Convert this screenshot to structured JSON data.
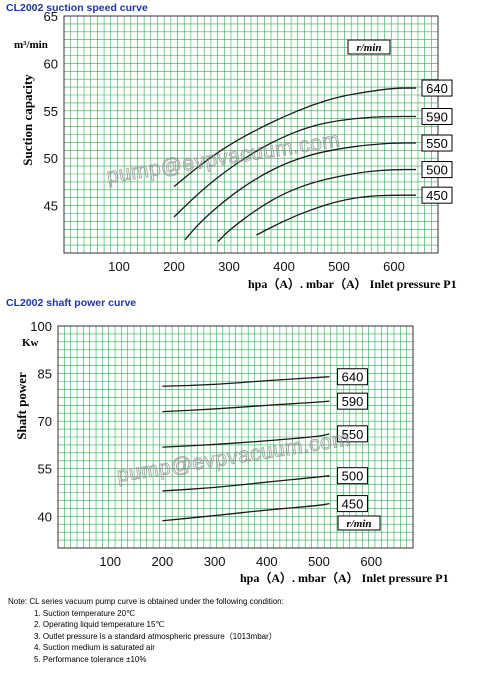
{
  "chart_data": [
    {
      "type": "line",
      "title": "CL2002 suction speed curve",
      "ylabel": "Suction capacity",
      "yunit": "m³/min",
      "xlabel": "hpa（A）. mbar（A） Inlet pressure P1",
      "units_box": "r/min",
      "xlim": [
        0,
        680
      ],
      "ylim": [
        40,
        65
      ],
      "xticks": [
        100,
        200,
        300,
        400,
        500,
        600
      ],
      "yticks": [
        45,
        50,
        55,
        60,
        65
      ],
      "grid": true,
      "series": [
        {
          "name": "640",
          "points": [
            [
              200,
              47.0
            ],
            [
              250,
              49.4
            ],
            [
              300,
              51.4
            ],
            [
              350,
              53.0
            ],
            [
              400,
              54.4
            ],
            [
              450,
              55.6
            ],
            [
              500,
              56.5
            ],
            [
              550,
              57.0
            ],
            [
              600,
              57.4
            ],
            [
              640,
              57.4
            ]
          ]
        },
        {
          "name": "590",
          "points": [
            [
              200,
              43.8
            ],
            [
              250,
              46.6
            ],
            [
              300,
              48.9
            ],
            [
              350,
              50.8
            ],
            [
              400,
              52.3
            ],
            [
              450,
              53.4
            ],
            [
              500,
              54.0
            ],
            [
              550,
              54.3
            ],
            [
              590,
              54.4
            ],
            [
              640,
              54.4
            ]
          ]
        },
        {
          "name": "550",
          "points": [
            [
              220,
              41.4
            ],
            [
              250,
              43.4
            ],
            [
              300,
              45.9
            ],
            [
              350,
              47.9
            ],
            [
              400,
              49.4
            ],
            [
              450,
              50.4
            ],
            [
              500,
              51.0
            ],
            [
              550,
              51.4
            ],
            [
              600,
              51.6
            ],
            [
              640,
              51.6
            ]
          ]
        },
        {
          "name": "500",
          "points": [
            [
              280,
              41.2
            ],
            [
              300,
              42.4
            ],
            [
              350,
              44.6
            ],
            [
              400,
              46.3
            ],
            [
              450,
              47.4
            ],
            [
              500,
              48.1
            ],
            [
              550,
              48.6
            ],
            [
              600,
              48.8
            ],
            [
              640,
              48.8
            ]
          ]
        },
        {
          "name": "450",
          "points": [
            [
              350,
              41.9
            ],
            [
              400,
              43.4
            ],
            [
              450,
              44.6
            ],
            [
              500,
              45.5
            ],
            [
              550,
              46.0
            ],
            [
              600,
              46.1
            ],
            [
              640,
              46.1
            ]
          ]
        }
      ]
    },
    {
      "type": "line",
      "title": "CL2002 shaft power curve",
      "ylabel": "Shaft power",
      "yunit": "Kw",
      "xlabel": "hpa（A）. mbar（A） Inlet pressure P1",
      "units_box": "r/min",
      "xlim": [
        0,
        680
      ],
      "ylim": [
        30,
        100
      ],
      "xticks": [
        100,
        200,
        300,
        400,
        500,
        600
      ],
      "yticks": [
        40,
        55,
        70,
        85,
        100
      ],
      "grid": true,
      "series": [
        {
          "name": "640",
          "points": [
            [
              200,
              81.0
            ],
            [
              300,
              81.5
            ],
            [
              400,
              82.8
            ],
            [
              500,
              83.8
            ],
            [
              520,
              84.0
            ]
          ]
        },
        {
          "name": "590",
          "points": [
            [
              200,
              73.0
            ],
            [
              300,
              73.8
            ],
            [
              400,
              75.0
            ],
            [
              500,
              76.0
            ],
            [
              520,
              76.3
            ]
          ]
        },
        {
          "name": "550",
          "points": [
            [
              200,
              61.8
            ],
            [
              300,
              62.6
            ],
            [
              400,
              63.8
            ],
            [
              500,
              65.2
            ],
            [
              520,
              66.0
            ]
          ]
        },
        {
          "name": "500",
          "points": [
            [
              200,
              48.0
            ],
            [
              300,
              49.0
            ],
            [
              400,
              50.8
            ],
            [
              500,
              52.4
            ],
            [
              520,
              52.8
            ]
          ]
        },
        {
          "name": "450",
          "points": [
            [
              200,
              38.6
            ],
            [
              300,
              40.2
            ],
            [
              400,
              42.0
            ],
            [
              500,
              43.4
            ],
            [
              520,
              44.0
            ]
          ]
        }
      ]
    }
  ],
  "watermark": "pump@evpvacuum.com",
  "notes": {
    "intro": "Note: CL series vacuum pump curve is obtained under the following condition:",
    "items": [
      "1. Suction temperature 20℃",
      "2. Operating liquid temperature 15℃",
      "3. Outlet pressure is a standard atmospheric pressure（1013mbar）",
      "4. Suction medium is saturated air",
      "5. Performance tolerance ±10%"
    ]
  },
  "colors": {
    "title": "#1f35a8",
    "grid": "#2fae52",
    "curve": "#1a1a1a"
  }
}
